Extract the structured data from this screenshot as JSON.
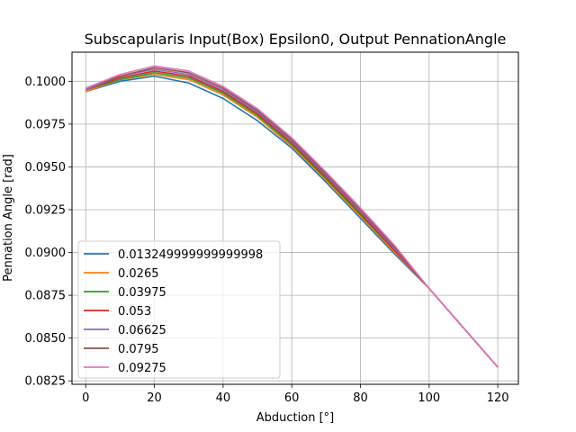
{
  "chart_data": {
    "type": "line",
    "title": "Subscapularis Input(Box) Epsilon0, Output PennationAngle",
    "xlabel": "Abduction [°]",
    "ylabel": "Pennation Angle [rad]",
    "xlim": [
      -4,
      126
    ],
    "ylim": [
      0.0823,
      0.1017
    ],
    "xticks": [
      0,
      20,
      40,
      60,
      80,
      100,
      120
    ],
    "xtick_labels": [
      "0",
      "20",
      "40",
      "60",
      "80",
      "100",
      "120"
    ],
    "yticks": [
      0.0825,
      0.085,
      0.0875,
      0.09,
      0.0925,
      0.095,
      0.0975,
      0.1
    ],
    "ytick_labels": [
      "0.0825",
      "0.0850",
      "0.0875",
      "0.0900",
      "0.0925",
      "0.0950",
      "0.0975",
      "0.1000"
    ],
    "grid": true,
    "legend_position": "lower-left",
    "x": [
      0,
      10,
      20,
      30,
      40,
      50,
      60,
      70,
      80,
      90,
      100,
      110,
      120
    ],
    "series": [
      {
        "name": "0.013249999999999998",
        "color": "#1f77b4",
        "values": [
          0.0994,
          0.1,
          0.1003,
          0.0999,
          0.099,
          0.0977,
          0.0961,
          0.0941,
          0.092,
          0.0899,
          0.0879,
          0.0856,
          0.0833
        ]
      },
      {
        "name": "0.0265",
        "color": "#ff7f0e",
        "values": [
          0.0994,
          0.1001,
          0.1004,
          0.1001,
          0.0992,
          0.0979,
          0.0962,
          0.0942,
          0.0921,
          0.09,
          0.0879,
          0.0856,
          0.0833
        ]
      },
      {
        "name": "0.03975",
        "color": "#2ca02c",
        "values": [
          0.0995,
          0.1001,
          0.1005,
          0.1002,
          0.0993,
          0.098,
          0.0963,
          0.0943,
          0.0922,
          0.0901,
          0.0879,
          0.0856,
          0.0833
        ]
      },
      {
        "name": "0.053",
        "color": "#d62728",
        "values": [
          0.0995,
          0.1002,
          0.1006,
          0.1003,
          0.0994,
          0.0981,
          0.0964,
          0.0944,
          0.0923,
          0.0901,
          0.0879,
          0.0856,
          0.0833
        ]
      },
      {
        "name": "0.06625",
        "color": "#9467bd",
        "values": [
          0.0995,
          0.1003,
          0.1007,
          0.1004,
          0.0995,
          0.0982,
          0.0965,
          0.0945,
          0.0924,
          0.0902,
          0.0879,
          0.0856,
          0.0833
        ]
      },
      {
        "name": "0.0795",
        "color": "#8c564b",
        "values": [
          0.0996,
          0.1003,
          0.1008,
          0.1005,
          0.0996,
          0.0983,
          0.0966,
          0.0946,
          0.0925,
          0.0903,
          0.0879,
          0.0856,
          0.0833
        ]
      },
      {
        "name": "0.09275",
        "color": "#e377c2",
        "values": [
          0.0996,
          0.1004,
          0.1009,
          0.1006,
          0.0997,
          0.0984,
          0.0967,
          0.0947,
          0.0926,
          0.0904,
          0.0879,
          0.0856,
          0.0833
        ]
      }
    ]
  }
}
